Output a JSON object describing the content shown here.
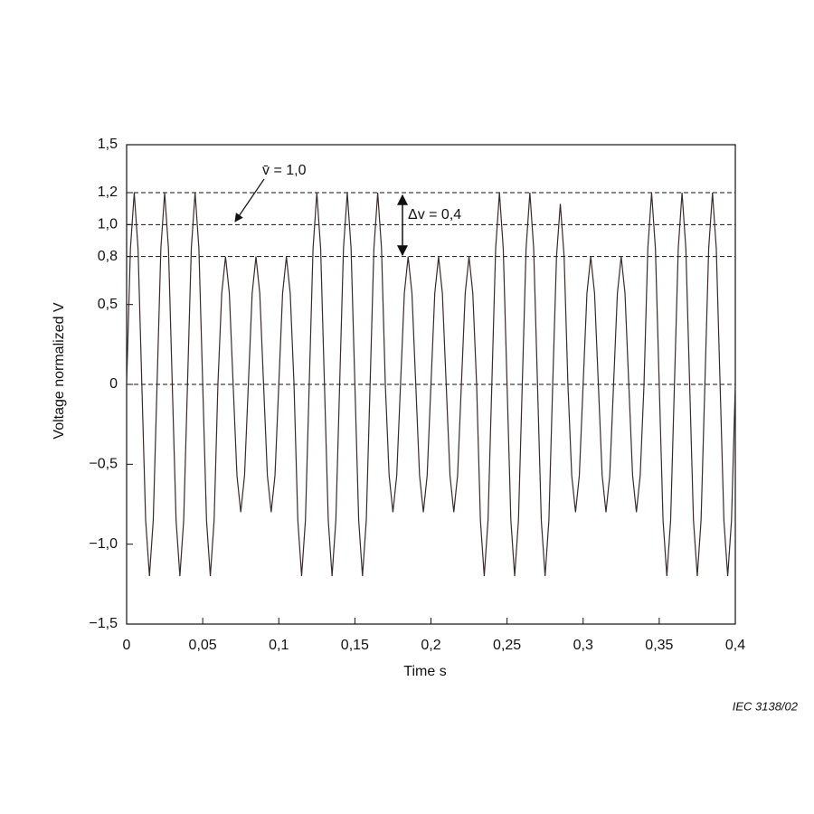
{
  "chart_data": {
    "type": "line",
    "x_label": "Time   s",
    "y_label": "Voltage normalized   V",
    "annotations": [
      "v̄ = 1,0",
      "Δv = 0,4"
    ],
    "footer": "IEC  3138/02",
    "xlim": [
      0,
      0.4
    ],
    "ylim": [
      -1.5,
      1.5
    ],
    "xticks": [
      0,
      {
        "value": 0.05,
        "label": "0,05"
      },
      {
        "value": 0.1,
        "label": "0,1"
      },
      {
        "value": 0.15,
        "label": "0,15"
      },
      {
        "value": 0.2,
        "label": "0,2"
      },
      {
        "value": 0.25,
        "label": "0,25"
      },
      {
        "value": 0.3,
        "label": "0,3"
      },
      {
        "value": 0.35,
        "label": "0,35"
      },
      {
        "value": 0.4,
        "label": "0,4"
      }
    ],
    "yticks": [
      {
        "value": -1.5,
        "label": "−1,5"
      },
      {
        "value": -1.0,
        "label": "−1,0"
      },
      {
        "value": -0.5,
        "label": "−0,5"
      },
      0,
      {
        "value": 0.5,
        "label": "0,5"
      },
      {
        "value": 0.8,
        "label": "0,8"
      },
      {
        "value": 1.0,
        "label": "1,0"
      },
      {
        "value": 1.2,
        "label": "1,2"
      },
      {
        "value": 1.5,
        "label": "1,5"
      }
    ],
    "reference_lines": [
      1.2,
      1.0,
      0.8,
      0
    ],
    "series": [
      {
        "color": "#3a2a2a",
        "x": [
          0,
          0.0025,
          0.005,
          0.0075,
          0.01,
          0.0125,
          0.015,
          0.0175,
          0.02,
          0.0225,
          0.025,
          0.0275,
          0.03,
          0.0325,
          0.035,
          0.0375,
          0.04,
          0.0425,
          0.045,
          0.0475,
          0.05,
          0.0525,
          0.055,
          0.0575,
          0.06,
          0.0625,
          0.065,
          0.0675,
          0.07,
          0.0725,
          0.075,
          0.0775,
          0.08,
          0.0825,
          0.085,
          0.0875,
          0.09,
          0.0925,
          0.095,
          0.0975,
          0.1,
          0.1025,
          0.105,
          0.1075,
          0.11,
          0.1125,
          0.115,
          0.1175,
          0.12,
          0.1225,
          0.125,
          0.1275,
          0.13,
          0.1325,
          0.135,
          0.1375,
          0.14,
          0.1425,
          0.145,
          0.1475,
          0.15,
          0.1525,
          0.155,
          0.1575,
          0.16,
          0.1625,
          0.165,
          0.1675,
          0.17,
          0.1725,
          0.175,
          0.1775,
          0.18,
          0.1825,
          0.185,
          0.1875,
          0.19,
          0.1925,
          0.195,
          0.1975,
          0.2,
          0.2025,
          0.205,
          0.2075,
          0.21,
          0.2125,
          0.215,
          0.2175,
          0.22,
          0.2225,
          0.225,
          0.2275,
          0.23,
          0.2325,
          0.235,
          0.2375,
          0.24,
          0.2425,
          0.245,
          0.2475,
          0.25,
          0.2525,
          0.255,
          0.2575,
          0.26,
          0.2625,
          0.265,
          0.2675,
          0.27,
          0.2725,
          0.275,
          0.2775,
          0.28,
          0.2825,
          0.285,
          0.2875,
          0.29,
          0.2925,
          0.295,
          0.2975,
          0.3,
          0.3025,
          0.305,
          0.3075,
          0.31,
          0.3125,
          0.315,
          0.3175,
          0.32,
          0.3225,
          0.325,
          0.3275,
          0.33,
          0.3325,
          0.335,
          0.3375,
          0.34,
          0.3425,
          0.345,
          0.3475,
          0.35,
          0.3525,
          0.355,
          0.3575,
          0.36,
          0.3625,
          0.365,
          0.3675,
          0.37,
          0.3725,
          0.375,
          0.3775,
          0.38,
          0.3825,
          0.385,
          0.3875,
          0.39,
          0.3925,
          0.395,
          0.3975,
          0.4
        ],
        "values": [
          0,
          0.85,
          1.2,
          0.85,
          0,
          -0.85,
          -1.2,
          -0.85,
          0,
          0.85,
          1.2,
          0.85,
          0,
          -0.85,
          -1.2,
          -0.85,
          0,
          0.85,
          1.2,
          0.85,
          0,
          -0.85,
          -1.2,
          -0.85,
          0,
          0.57,
          0.8,
          0.57,
          0,
          -0.57,
          -0.8,
          -0.57,
          0,
          0.57,
          0.8,
          0.57,
          0,
          -0.57,
          -0.8,
          -0.57,
          0,
          0.57,
          0.8,
          0.57,
          0,
          -0.85,
          -1.2,
          -0.85,
          0,
          0.85,
          1.2,
          0.85,
          0,
          -0.85,
          -1.2,
          -0.85,
          0,
          0.85,
          1.2,
          0.85,
          0,
          -0.85,
          -1.2,
          -0.85,
          0,
          0.85,
          1.2,
          0.85,
          0,
          -0.57,
          -0.8,
          -0.57,
          0,
          0.57,
          0.8,
          0.57,
          0,
          -0.57,
          -0.8,
          -0.57,
          0,
          0.57,
          0.8,
          0.57,
          0,
          -0.57,
          -0.8,
          -0.57,
          0,
          0.57,
          0.8,
          0.57,
          0,
          -0.85,
          -1.2,
          -0.85,
          0,
          0.85,
          1.2,
          0.85,
          0,
          -0.85,
          -1.2,
          -0.85,
          0,
          0.85,
          1.2,
          0.85,
          0,
          -0.85,
          -1.2,
          -0.85,
          0,
          0.8,
          1.13,
          0.8,
          0,
          -0.57,
          -0.8,
          -0.57,
          0,
          0.57,
          0.8,
          0.57,
          0,
          -0.57,
          -0.8,
          -0.57,
          0,
          0.57,
          0.8,
          0.57,
          0,
          -0.57,
          -0.8,
          -0.57,
          0,
          0.85,
          1.2,
          0.85,
          0,
          -0.85,
          -1.2,
          -0.85,
          0,
          0.85,
          1.2,
          0.85,
          0,
          -0.85,
          -1.2,
          -0.85,
          0,
          0.85,
          1.2,
          0.85,
          0,
          -0.85,
          -1.2,
          -0.85,
          0
        ]
      }
    ]
  }
}
